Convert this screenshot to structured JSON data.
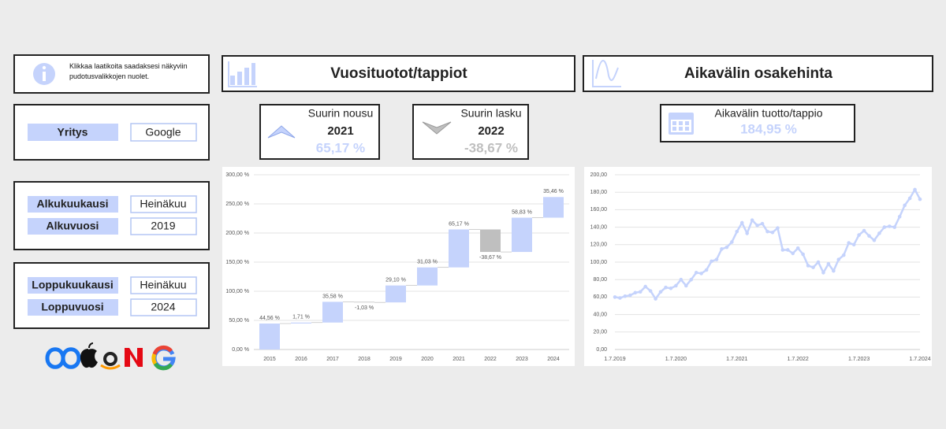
{
  "info": {
    "text": "Klikkaa laatikoita saadaksesi näkyviin pudotusvalikkojen nuolet."
  },
  "company": {
    "label": "Yritys",
    "value": "Google"
  },
  "start": {
    "month_label": "Alkukuukausi",
    "month": "Heinäkuu",
    "year_label": "Alkuvuosi",
    "year": "2019"
  },
  "end": {
    "month_label": "Loppukuukausi",
    "month": "Heinäkuu",
    "year_label": "Loppuvuosi",
    "year": "2024"
  },
  "headers": [
    "Vuosituotot/tappiot",
    "Aikavälin osakehinta"
  ],
  "kpis": [
    {
      "label": "Suurin nousu",
      "year": "2021",
      "value": "65,17 %"
    },
    {
      "label": "Suurin lasku",
      "year": "2022",
      "value": "-38,67 %"
    }
  ],
  "period_return": {
    "label": "Aikavälin tuotto/tappio",
    "value": "184,95 %"
  },
  "chart_data": [
    {
      "type": "waterfall",
      "categories": [
        "2015",
        "2016",
        "2017",
        "2018",
        "2019",
        "2020",
        "2021",
        "2022",
        "2023",
        "2024"
      ],
      "values": [
        44.56,
        1.71,
        35.58,
        -1.03,
        29.1,
        31.03,
        65.17,
        -38.67,
        58.83,
        35.46
      ],
      "value_labels": [
        "44,56 %",
        "1,71 %",
        "35,58 %",
        "-1,03 %",
        "29,10 %",
        "31,03 %",
        "65,17 %",
        "-38,67 %",
        "58,83 %",
        "35,46 %"
      ],
      "color": "#c5d3fc",
      "negative_color": "#bfbfbf",
      "ylim": [
        0,
        300
      ],
      "yticks": [
        {
          "value": 0,
          "label": "0,00 %"
        },
        {
          "value": 50,
          "label": "50,00 %"
        },
        {
          "value": 100,
          "label": "100,00 %"
        },
        {
          "value": 150,
          "label": "150,00 %"
        },
        {
          "value": 200,
          "label": "200,00 %"
        },
        {
          "value": 250,
          "label": "250,00 %"
        },
        {
          "value": 300,
          "label": "300,00 %"
        }
      ],
      "grid": true
    },
    {
      "type": "line",
      "color": "#c5d3fc",
      "categories": [
        "1.7.2019",
        null,
        null,
        null,
        null,
        null,
        null,
        null,
        null,
        null,
        null,
        null,
        "1.7.2020",
        null,
        null,
        null,
        null,
        null,
        null,
        null,
        null,
        null,
        null,
        null,
        "1.7.2021",
        null,
        null,
        null,
        null,
        null,
        null,
        null,
        null,
        null,
        null,
        null,
        "1.7.2022",
        null,
        null,
        null,
        null,
        null,
        null,
        null,
        null,
        null,
        null,
        null,
        "1.7.2023",
        null,
        null,
        null,
        null,
        null,
        null,
        null,
        null,
        null,
        null,
        null,
        "1.7.2024"
      ],
      "values": [
        60,
        59,
        61,
        62,
        65,
        66,
        72,
        67,
        58,
        66,
        71,
        70,
        73,
        80,
        73,
        80,
        88,
        87,
        91,
        101,
        103,
        115,
        117,
        123,
        135,
        145,
        133,
        148,
        142,
        144,
        135,
        134,
        139,
        114,
        114,
        110,
        116,
        109,
        96,
        94,
        100,
        88,
        98,
        90,
        103,
        108,
        122,
        120,
        131,
        136,
        130,
        125,
        133,
        140,
        141,
        140,
        152,
        165,
        173,
        183,
        172
      ],
      "ylim": [
        0,
        200
      ],
      "yticks": [
        {
          "value": 0,
          "label": "0,00"
        },
        {
          "value": 20,
          "label": "20,00"
        },
        {
          "value": 40,
          "label": "40,00"
        },
        {
          "value": 60,
          "label": "60,00"
        },
        {
          "value": 80,
          "label": "80,00"
        },
        {
          "value": 100,
          "label": "100,00"
        },
        {
          "value": 120,
          "label": "120,00"
        },
        {
          "value": 140,
          "label": "140,00"
        },
        {
          "value": 160,
          "label": "160,00"
        },
        {
          "value": 180,
          "label": "180,00"
        },
        {
          "value": 200,
          "label": "200,00"
        }
      ],
      "grid": true
    }
  ]
}
